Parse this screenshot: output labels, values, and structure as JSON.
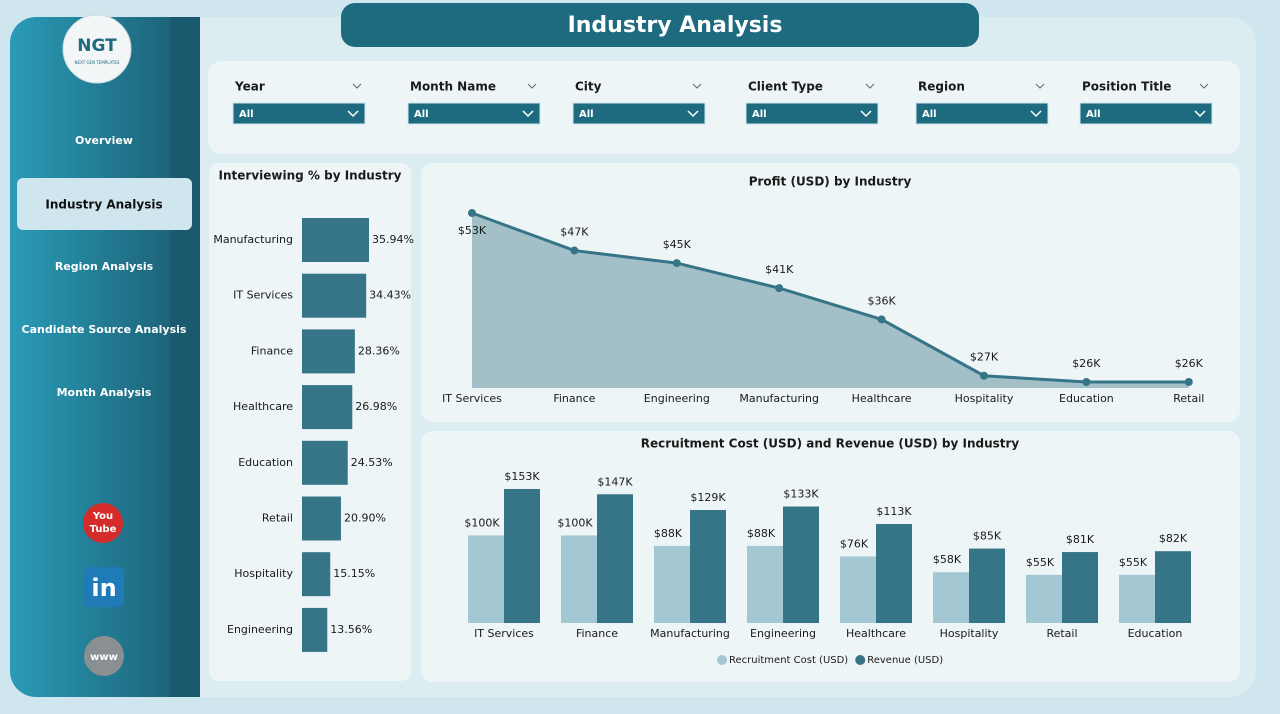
{
  "header": {
    "title": "Industry Analysis"
  },
  "logo": {
    "name": "NGT",
    "tagline": "NEXT GEN TEMPLATES"
  },
  "nav": [
    "Overview",
    "Industry Analysis",
    "Region Analysis",
    "Candidate Source Analysis",
    "Month Analysis"
  ],
  "nav_active": 1,
  "social": {
    "youtube": [
      "You",
      "Tube"
    ],
    "linkedin": "in",
    "web": "www"
  },
  "filters": [
    {
      "label": "Year",
      "value": "All"
    },
    {
      "label": "Month Name",
      "value": "All"
    },
    {
      "label": "City",
      "value": "All"
    },
    {
      "label": "Client Type",
      "value": "All"
    },
    {
      "label": "Region",
      "value": "All"
    },
    {
      "label": "Position Title",
      "value": "All"
    }
  ],
  "chart_data": [
    {
      "type": "hbar",
      "title": "Interviewing % by Industry",
      "color": "#367587",
      "categories": [
        "Manufacturing",
        "IT Services",
        "Finance",
        "Healthcare",
        "Education",
        "Retail",
        "Hospitality",
        "Engineering"
      ],
      "values": [
        35.94,
        34.43,
        28.36,
        26.98,
        24.53,
        20.9,
        15.15,
        13.56
      ],
      "value_labels": [
        "35.94%",
        "34.43%",
        "28.36%",
        "26.98%",
        "24.53%",
        "20.90%",
        "15.15%",
        "13.56%"
      ]
    },
    {
      "type": "area",
      "title": "Profit (USD) by Industry",
      "color": "#367587",
      "fill": "#a3bfc8",
      "categories": [
        "IT Services",
        "Finance",
        "Engineering",
        "Manufacturing",
        "Healthcare",
        "Hospitality",
        "Education",
        "Retail"
      ],
      "values": [
        53000,
        47000,
        45000,
        41000,
        36000,
        27000,
        26000,
        26000
      ],
      "value_labels": [
        "$53K",
        "$47K",
        "$45K",
        "$41K",
        "$36K",
        "$27K",
        "$26K",
        "$26K"
      ]
    },
    {
      "type": "grouped_bar",
      "title": "Recruitment Cost (USD) and Revenue (USD) by Industry",
      "categories": [
        "IT Services",
        "Finance",
        "Manufacturing",
        "Engineering",
        "Healthcare",
        "Hospitality",
        "Retail",
        "Education"
      ],
      "series": [
        {
          "name": "Recruitment Cost (USD)",
          "color": "#a3c8d3",
          "values": [
            100000,
            100000,
            88000,
            88000,
            76000,
            58000,
            55000,
            55000
          ],
          "value_labels": [
            "$100K",
            "$100K",
            "$88K",
            "$88K",
            "$76K",
            "$58K",
            "$55K",
            "$55K"
          ]
        },
        {
          "name": "Revenue (USD)",
          "color": "#367587",
          "values": [
            153000,
            147000,
            129000,
            133000,
            113000,
            85000,
            81000,
            82000
          ],
          "value_labels": [
            "$153K",
            "$147K",
            "$129K",
            "$133K",
            "$113K",
            "$85K",
            "$81K",
            "$82K"
          ]
        }
      ],
      "legend": "bottom"
    }
  ]
}
